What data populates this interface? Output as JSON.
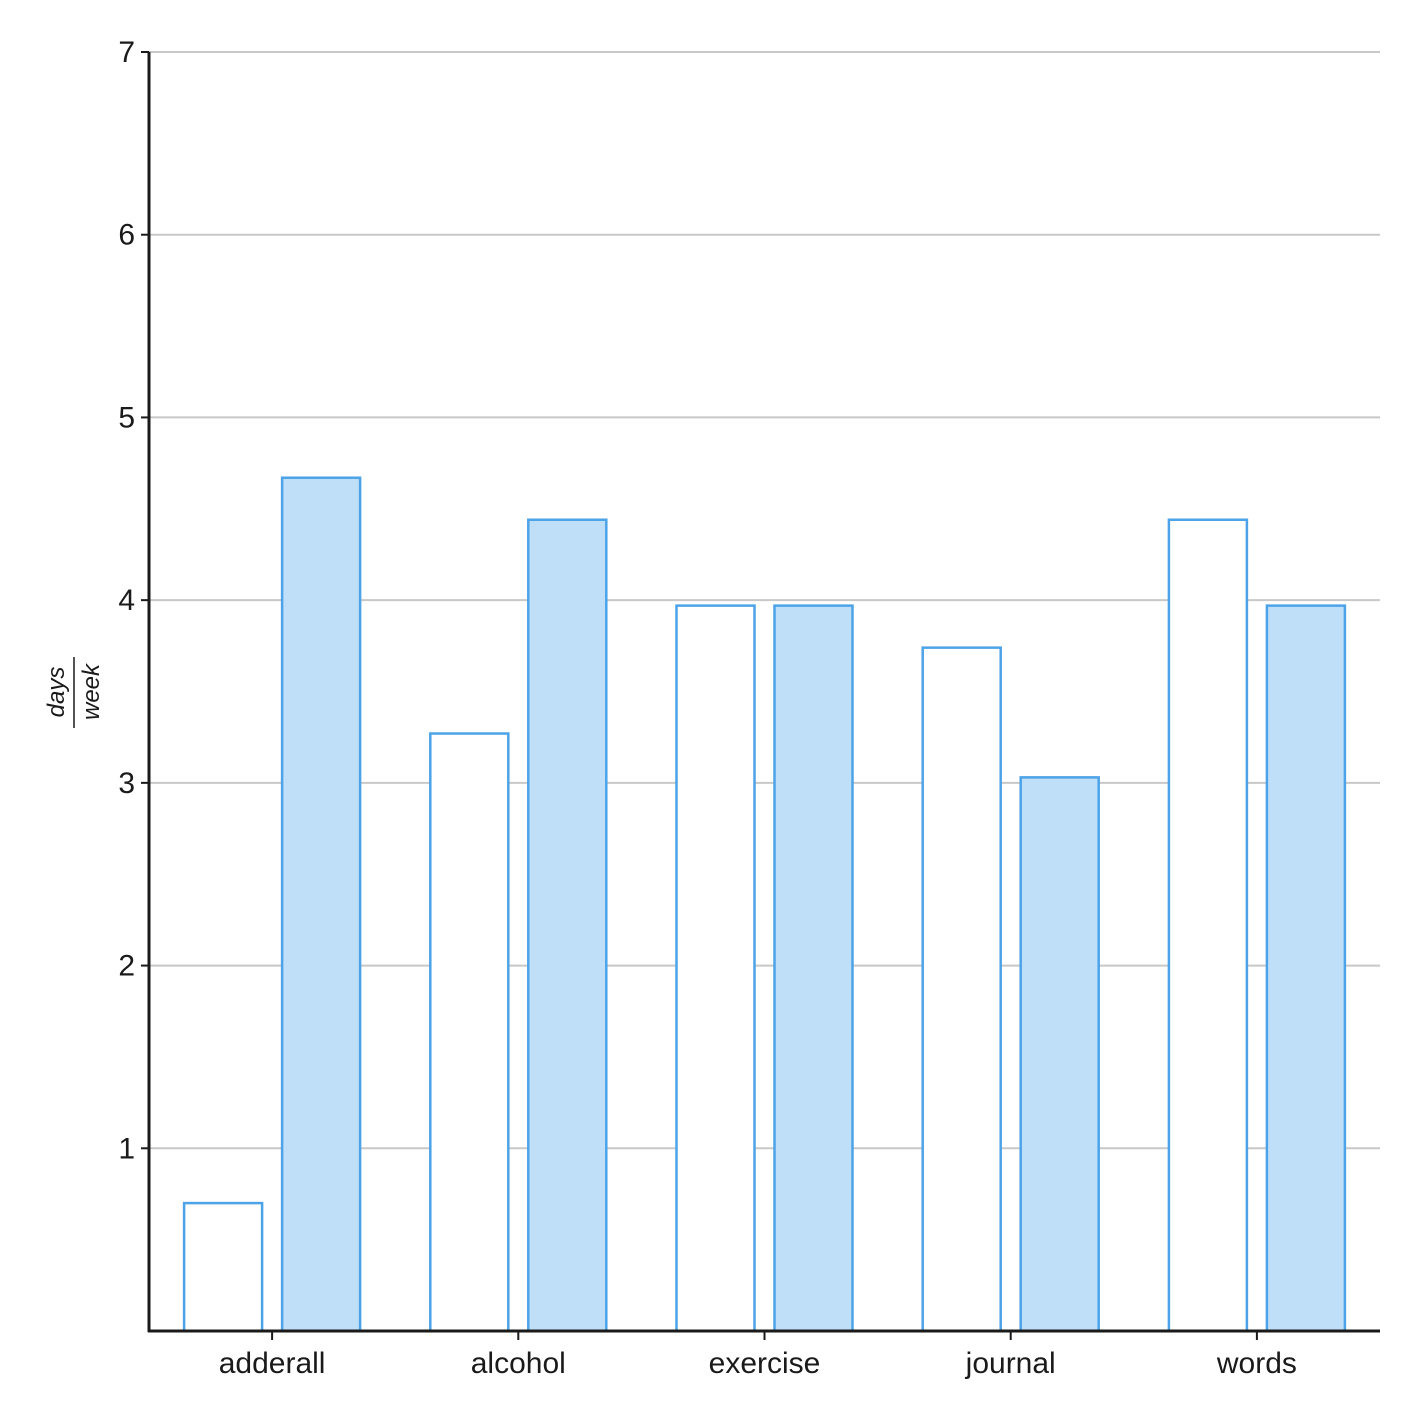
{
  "chart_data": {
    "type": "bar",
    "categories": [
      "adderall",
      "alcohol",
      "exercise",
      "journal",
      "words"
    ],
    "series": [
      {
        "values": [
          0.7,
          3.27,
          3.97,
          3.74,
          4.44
        ],
        "fill": "#ffffff",
        "stroke": "#4da3e8"
      },
      {
        "values": [
          4.67,
          4.44,
          3.97,
          3.03,
          3.97
        ],
        "fill": "#bfdff9",
        "stroke": "#4da3e8"
      }
    ],
    "ylabel": {
      "numerator": "days",
      "denominator": "week"
    },
    "ylim": [
      0,
      7
    ],
    "yticks": [
      1,
      2,
      3,
      4,
      5,
      6,
      7
    ],
    "grid": true,
    "legend": "none"
  }
}
